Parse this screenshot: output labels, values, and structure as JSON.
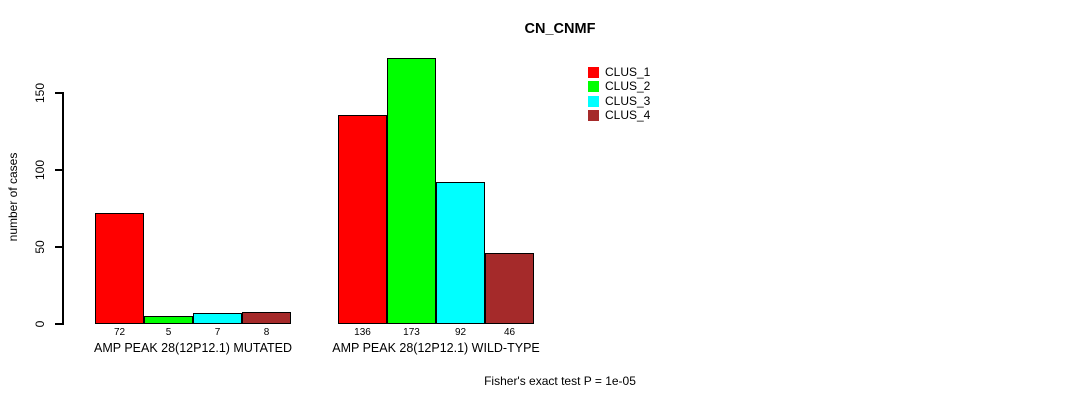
{
  "chart_data": {
    "type": "bar",
    "title": "CN_CNMF",
    "ylabel": "number of cases",
    "xlabel": "",
    "yticks": [
      0,
      50,
      100,
      150
    ],
    "ylim": [
      0,
      180
    ],
    "grid": false,
    "legend_position": "top-right",
    "categories": [
      "AMP PEAK 28(12P12.1) MUTATED",
      "AMP PEAK 28(12P12.1) WILD-TYPE"
    ],
    "series": [
      {
        "name": "CLUS_1",
        "color": "#FF0000",
        "values": [
          72,
          136
        ]
      },
      {
        "name": "CLUS_2",
        "color": "#00FF00",
        "values": [
          5,
          173
        ]
      },
      {
        "name": "CLUS_3",
        "color": "#00FFFF",
        "values": [
          7,
          92
        ]
      },
      {
        "name": "CLUS_4",
        "color": "#A52A2A",
        "values": [
          8,
          46
        ]
      }
    ],
    "bar_value_labels": [
      [
        "72",
        "5",
        "7",
        "8"
      ],
      [
        "136",
        "173",
        "92",
        "46"
      ]
    ],
    "annotation": "Fisher's exact test P = 1e-05"
  }
}
